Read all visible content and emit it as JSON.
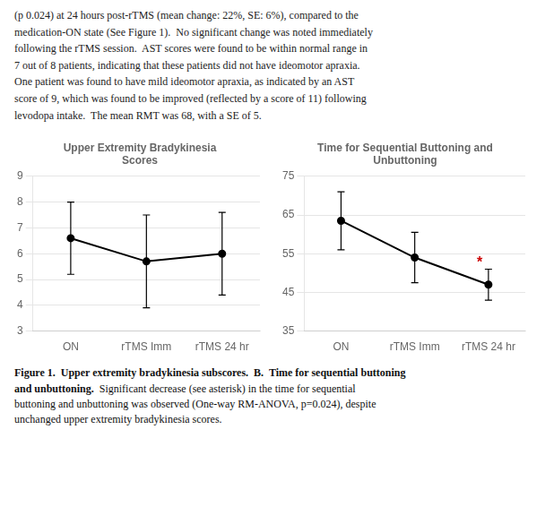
{
  "paragraph": [
    "(p 0.024) at 24 hours post-rTMS (mean change: 22%, SE: 6%), compared to the",
    "medication-ON state (See Figure 1).  No significant change was noted immediately",
    "following the rTMS session.  AST scores were found to be within normal range in",
    "7 out of 8 patients, indicating that these patients did not have ideomotor apraxia.",
    "One patient was found to have mild ideomotor apraxia, as indicated by an AST",
    "score of 9, which was found to be improved (reflected by a score of 11) following",
    "levodopa intake.  The mean RMT was 68, with a SE of 5."
  ],
  "chart_data": [
    {
      "type": "line",
      "title": "Upper Extremity Bradykinesia\nScores",
      "categories": [
        "ON",
        "rTMS Imm",
        "rTMS 24 hr"
      ],
      "values": [
        6.6,
        5.7,
        6.0
      ],
      "errors": [
        1.4,
        1.8,
        1.6
      ],
      "color": "#000000",
      "marker": "circle",
      "line_style": "solid",
      "ylim": [
        3,
        9
      ],
      "yticks": [
        3,
        4,
        5,
        6,
        7,
        8,
        9
      ],
      "grid": true
    },
    {
      "type": "line",
      "title": "Time for Sequential Buttoning and\nUnbuttoning",
      "categories": [
        "ON",
        "rTMS Imm",
        "rTMS 24 hr"
      ],
      "values": [
        63.5,
        54.0,
        47.0
      ],
      "errors": [
        7.5,
        6.5,
        4.0
      ],
      "color": "#000000",
      "marker": "circle",
      "line_style": "solid",
      "ylim": [
        35,
        75
      ],
      "yticks": [
        35,
        45,
        55,
        65,
        75
      ],
      "grid": true,
      "annotations": [
        {
          "text": "*",
          "x": 1.88,
          "y": 52.5,
          "color": "#cc0000"
        }
      ]
    }
  ],
  "caption_bold": [
    "Figure 1.  Upper extremity bradykinesia subscores.  B.  Time for sequential buttoning",
    "and unbuttoning."
  ],
  "caption": [
    "  Significant decrease (see asterisk) in the time for sequential",
    "buttoning and unbuttoning was observed (One-way RM-ANOVA, p=0.024), despite",
    "unchanged upper extremity bradykinesia scores."
  ]
}
